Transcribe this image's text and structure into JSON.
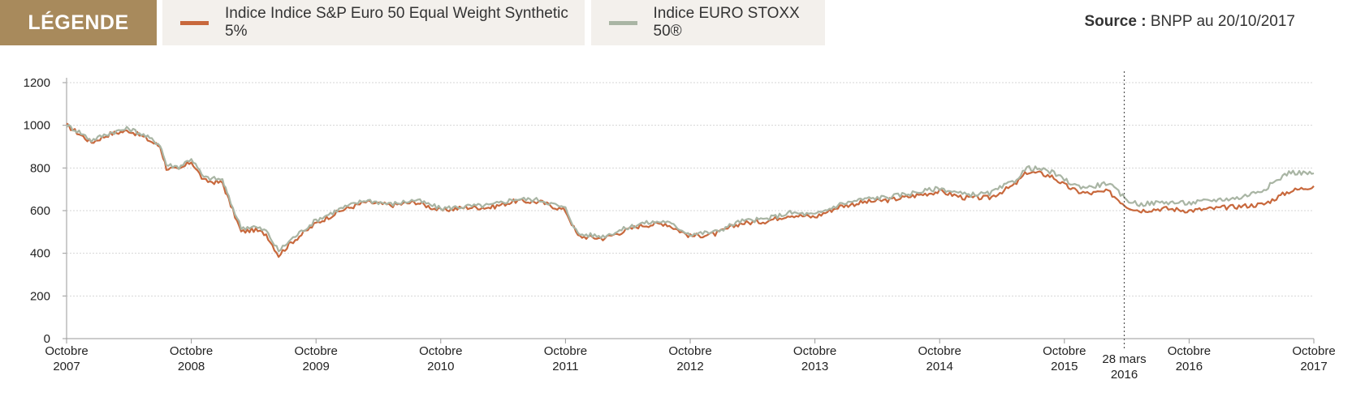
{
  "legend": {
    "title": "LÉGENDE",
    "items": [
      {
        "label": "Indice Indice S&P Euro 50 Equal Weight Synthetic 5%",
        "color": "#c8683c"
      },
      {
        "label": "Indice EURO STOXX 50®",
        "color": "#a9b5a4"
      }
    ]
  },
  "source": {
    "prefix": "Source :",
    "text": "BNPP au 20/10/2017"
  },
  "chart_data": {
    "type": "line",
    "ylim": [
      0,
      1200
    ],
    "yticks": [
      0,
      200,
      400,
      600,
      800,
      1000,
      1200
    ],
    "grid": true,
    "xticks": [
      {
        "line1": "Octobre",
        "line2": "2007",
        "t": 0
      },
      {
        "line1": "Octobre",
        "line2": "2008",
        "t": 1
      },
      {
        "line1": "Octobre",
        "line2": "2009",
        "t": 2
      },
      {
        "line1": "Octobre",
        "line2": "2010",
        "t": 3
      },
      {
        "line1": "Octobre",
        "line2": "2011",
        "t": 4
      },
      {
        "line1": "Octobre",
        "line2": "2012",
        "t": 5
      },
      {
        "line1": "Octobre",
        "line2": "2013",
        "t": 6
      },
      {
        "line1": "Octobre",
        "line2": "2014",
        "t": 7
      },
      {
        "line1": "Octobre",
        "line2": "2015",
        "t": 8
      },
      {
        "line1": "Octobre",
        "line2": "2016",
        "t": 9
      },
      {
        "line1": "Octobre",
        "line2": "2017",
        "t": 10
      }
    ],
    "marker": {
      "line1": "28 mars",
      "line2": "2016",
      "t": 8.48
    },
    "series": [
      {
        "name": "Indice Indice S&P Euro 50 Equal Weight Synthetic 5%",
        "color": "#c8683c",
        "points": [
          [
            0,
            1000
          ],
          [
            0.1,
            960
          ],
          [
            0.2,
            920
          ],
          [
            0.35,
            960
          ],
          [
            0.5,
            975
          ],
          [
            0.6,
            950
          ],
          [
            0.75,
            900
          ],
          [
            0.8,
            800
          ],
          [
            0.9,
            790
          ],
          [
            1.0,
            830
          ],
          [
            1.1,
            740
          ],
          [
            1.25,
            730
          ],
          [
            1.3,
            650
          ],
          [
            1.4,
            500
          ],
          [
            1.5,
            510
          ],
          [
            1.6,
            490
          ],
          [
            1.7,
            390
          ],
          [
            1.8,
            450
          ],
          [
            2.0,
            540
          ],
          [
            2.2,
            600
          ],
          [
            2.4,
            640
          ],
          [
            2.6,
            625
          ],
          [
            2.8,
            640
          ],
          [
            3.0,
            600
          ],
          [
            3.2,
            615
          ],
          [
            3.4,
            615
          ],
          [
            3.6,
            645
          ],
          [
            3.8,
            640
          ],
          [
            4.0,
            600
          ],
          [
            4.1,
            480
          ],
          [
            4.3,
            470
          ],
          [
            4.6,
            530
          ],
          [
            4.8,
            540
          ],
          [
            5.0,
            480
          ],
          [
            5.2,
            490
          ],
          [
            5.4,
            540
          ],
          [
            5.6,
            550
          ],
          [
            5.8,
            580
          ],
          [
            6.0,
            570
          ],
          [
            6.2,
            620
          ],
          [
            6.4,
            640
          ],
          [
            6.6,
            650
          ],
          [
            6.8,
            670
          ],
          [
            7.0,
            690
          ],
          [
            7.2,
            660
          ],
          [
            7.4,
            660
          ],
          [
            7.6,
            720
          ],
          [
            7.7,
            780
          ],
          [
            7.8,
            775
          ],
          [
            7.9,
            760
          ],
          [
            8.0,
            720
          ],
          [
            8.1,
            690
          ],
          [
            8.2,
            680
          ],
          [
            8.35,
            690
          ],
          [
            8.5,
            620
          ],
          [
            8.6,
            600
          ],
          [
            8.8,
            610
          ],
          [
            9.0,
            600
          ],
          [
            9.2,
            610
          ],
          [
            9.4,
            620
          ],
          [
            9.6,
            630
          ],
          [
            9.8,
            690
          ],
          [
            10.0,
            715
          ]
        ]
      },
      {
        "name": "Indice EURO STOXX 50®",
        "color": "#a9b5a4",
        "points": [
          [
            0,
            1000
          ],
          [
            0.1,
            970
          ],
          [
            0.2,
            930
          ],
          [
            0.35,
            965
          ],
          [
            0.5,
            985
          ],
          [
            0.6,
            960
          ],
          [
            0.75,
            910
          ],
          [
            0.8,
            815
          ],
          [
            0.9,
            805
          ],
          [
            1.0,
            845
          ],
          [
            1.1,
            755
          ],
          [
            1.25,
            745
          ],
          [
            1.3,
            660
          ],
          [
            1.4,
            520
          ],
          [
            1.5,
            525
          ],
          [
            1.6,
            505
          ],
          [
            1.7,
            410
          ],
          [
            1.8,
            465
          ],
          [
            2.0,
            555
          ],
          [
            2.2,
            610
          ],
          [
            2.4,
            650
          ],
          [
            2.6,
            630
          ],
          [
            2.8,
            650
          ],
          [
            3.0,
            610
          ],
          [
            3.2,
            620
          ],
          [
            3.4,
            625
          ],
          [
            3.6,
            655
          ],
          [
            3.8,
            650
          ],
          [
            4.0,
            610
          ],
          [
            4.1,
            490
          ],
          [
            4.3,
            480
          ],
          [
            4.6,
            540
          ],
          [
            4.8,
            550
          ],
          [
            5.0,
            490
          ],
          [
            5.2,
            500
          ],
          [
            5.4,
            550
          ],
          [
            5.6,
            560
          ],
          [
            5.8,
            590
          ],
          [
            6.0,
            580
          ],
          [
            6.2,
            630
          ],
          [
            6.4,
            655
          ],
          [
            6.6,
            665
          ],
          [
            6.8,
            685
          ],
          [
            7.0,
            705
          ],
          [
            7.2,
            675
          ],
          [
            7.4,
            680
          ],
          [
            7.6,
            740
          ],
          [
            7.7,
            800
          ],
          [
            7.8,
            795
          ],
          [
            7.9,
            780
          ],
          [
            8.0,
            745
          ],
          [
            8.1,
            715
          ],
          [
            8.2,
            710
          ],
          [
            8.35,
            730
          ],
          [
            8.5,
            650
          ],
          [
            8.6,
            630
          ],
          [
            8.8,
            640
          ],
          [
            9.0,
            635
          ],
          [
            9.2,
            650
          ],
          [
            9.4,
            660
          ],
          [
            9.6,
            700
          ],
          [
            9.8,
            780
          ],
          [
            10.0,
            775
          ]
        ]
      }
    ]
  }
}
